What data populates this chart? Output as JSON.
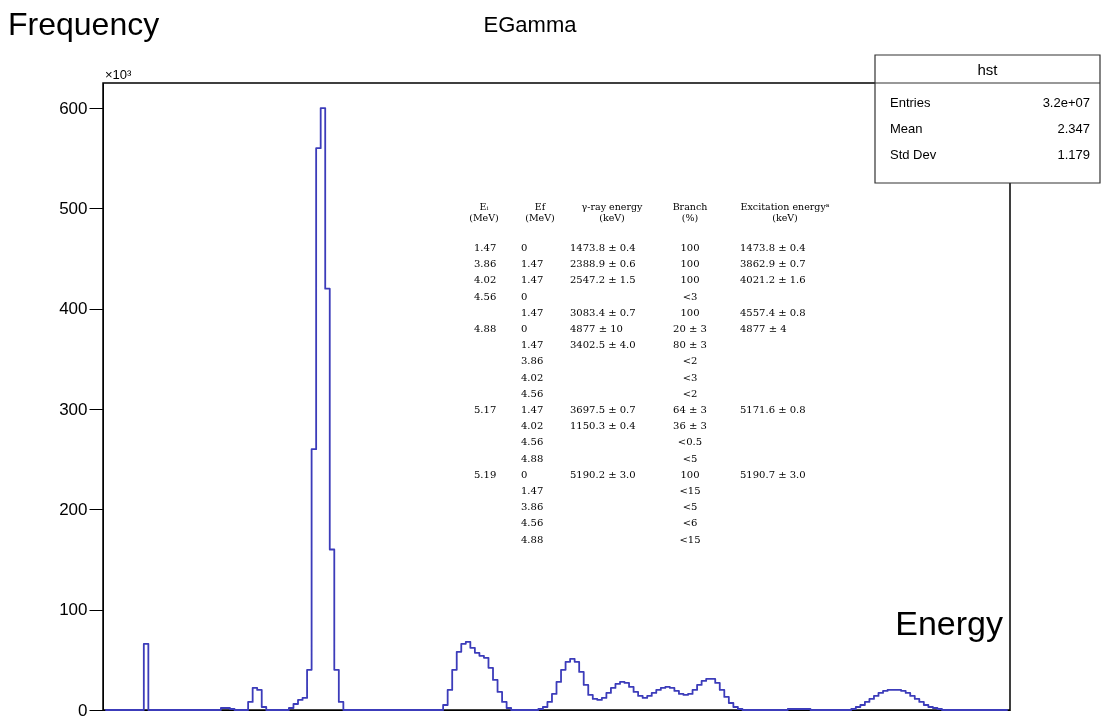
{
  "chart_data": [
    {
      "type": "step",
      "title": "EGamma",
      "xlabel": "Energy",
      "ylabel": "Frequency",
      "annotations": [
        "×10³"
      ],
      "tick_labels": "y",
      "ylim": [
        0,
        625
      ],
      "yticks": [
        0,
        100,
        200,
        300,
        400,
        500,
        600
      ],
      "grid": false,
      "categories": [
        null,
        null,
        null,
        null,
        null,
        null,
        null,
        null,
        null,
        null,
        null,
        null,
        null,
        null,
        null,
        null,
        null,
        null,
        null,
        null,
        null,
        null,
        null,
        null,
        null,
        null,
        null,
        null,
        null,
        null,
        null,
        null,
        null,
        null,
        null,
        null,
        null,
        null,
        null,
        null,
        null,
        null,
        null,
        null,
        null,
        null,
        null,
        null,
        null,
        null,
        null,
        null,
        null,
        null,
        null,
        null,
        null,
        null,
        null,
        null,
        null,
        null,
        null,
        null,
        null,
        null,
        null,
        null,
        null,
        null,
        null,
        null,
        null,
        null,
        null,
        null,
        null,
        null,
        null,
        null,
        null,
        null,
        null,
        null,
        null,
        null,
        null,
        null,
        null,
        null,
        null,
        null,
        null,
        null,
        null,
        null,
        null,
        null,
        null,
        null,
        null,
        null,
        null,
        null,
        null,
        null,
        null,
        null,
        null,
        null,
        null,
        null,
        null,
        null,
        null,
        null,
        null,
        null,
        null,
        null,
        null,
        null,
        null,
        null,
        null,
        null,
        null,
        null,
        null,
        null,
        null,
        null,
        null,
        null,
        null,
        null,
        null,
        null,
        null,
        null,
        null,
        null,
        null,
        null,
        null,
        null,
        null,
        null,
        null,
        null,
        null,
        null,
        null,
        null,
        null,
        null,
        null,
        null,
        null,
        null,
        null,
        null,
        null,
        null,
        null,
        null,
        null,
        null,
        null,
        null,
        null,
        null,
        null,
        null,
        null,
        null,
        null,
        null,
        null,
        null,
        null,
        null,
        null,
        null,
        null,
        null,
        null,
        null,
        null,
        null,
        null,
        null,
        null,
        null,
        null,
        null,
        null,
        null,
        null,
        null
      ],
      "series": [
        {
          "color": "#3c3cba",
          "values": [
            0,
            0,
            0,
            0,
            0,
            0,
            0,
            0,
            0,
            66,
            0,
            0,
            0,
            0,
            0,
            0,
            0,
            0,
            0,
            0,
            0,
            0,
            0,
            0,
            0,
            0,
            2,
            2,
            1,
            0,
            0,
            0,
            8,
            22,
            20,
            3,
            0,
            0,
            0,
            0,
            0,
            2,
            6,
            10,
            12,
            40,
            260,
            560,
            600,
            420,
            160,
            40,
            8,
            0,
            0,
            0,
            0,
            0,
            0,
            0,
            0,
            0,
            0,
            0,
            0,
            0,
            0,
            0,
            0,
            0,
            0,
            0,
            0,
            0,
            0,
            5,
            20,
            40,
            58,
            66,
            68,
            62,
            57,
            54,
            52,
            42,
            30,
            18,
            8,
            2,
            0,
            0,
            0,
            0,
            0,
            0,
            1,
            3,
            8,
            16,
            28,
            40,
            48,
            51,
            48,
            38,
            25,
            15,
            11,
            10,
            12,
            17,
            22,
            26,
            28,
            27,
            23,
            18,
            14,
            12,
            14,
            17,
            20,
            22,
            23,
            22,
            19,
            16,
            15,
            16,
            20,
            25,
            29,
            31,
            31,
            27,
            20,
            13,
            7,
            3,
            1,
            0,
            0,
            0,
            0,
            0,
            0,
            0,
            0,
            0,
            0,
            1,
            1,
            1,
            1,
            1,
            0,
            0,
            0,
            0,
            0,
            0,
            0,
            0,
            0,
            1,
            3,
            5,
            8,
            11,
            14,
            17,
            19,
            20,
            20,
            20,
            19,
            17,
            14,
            11,
            8,
            5,
            3,
            2,
            1,
            0,
            0,
            0,
            0,
            0,
            0,
            0,
            0,
            0,
            0,
            0,
            0,
            0,
            0,
            0
          ]
        }
      ]
    },
    {
      "type": "other",
      "title": "hst",
      "annotations": [
        "Entries",
        "3.2e+07",
        "Mean",
        "2.347",
        "Std Dev",
        "1.179"
      ]
    },
    {
      "type": "other",
      "categories": [
        "Eᵢ\n(MeV)",
        "Ef\n(MeV)",
        "γ-ray energy\n(keV)",
        "Branch\n(%)",
        "Excitation energyᵃ\n(keV)"
      ],
      "cell_labels": [
        [
          "1.47",
          "0",
          "1473.8 ± 0.4",
          "100",
          "1473.8 ± 0.4"
        ],
        [
          "3.86",
          "1.47",
          "2388.9 ± 0.6",
          "100",
          "3862.9 ± 0.7"
        ],
        [
          "4.02",
          "1.47",
          "2547.2 ± 1.5",
          "100",
          "4021.2 ± 1.6"
        ],
        [
          "4.56",
          "0",
          null,
          "<3",
          null
        ],
        [
          null,
          "1.47",
          "3083.4 ± 0.7",
          "100",
          "4557.4 ± 0.8"
        ],
        [
          "4.88",
          "0",
          "4877 ± 10",
          "20 ± 3",
          "4877 ± 4"
        ],
        [
          null,
          "1.47",
          "3402.5 ± 4.0",
          "80 ± 3",
          null
        ],
        [
          null,
          "3.86",
          null,
          "<2",
          null
        ],
        [
          null,
          "4.02",
          null,
          "<3",
          null
        ],
        [
          null,
          "4.56",
          null,
          "<2",
          null
        ],
        [
          "5.17",
          "1.47",
          "3697.5 ± 0.7",
          "64 ± 3",
          "5171.6 ± 0.8"
        ],
        [
          null,
          "4.02",
          "1150.3 ± 0.4",
          "36 ± 3",
          null
        ],
        [
          null,
          "4.56",
          null,
          "<0.5",
          null
        ],
        [
          null,
          "4.88",
          null,
          "<5",
          null
        ],
        [
          "5.19",
          "0",
          "5190.2 ± 3.0",
          "100",
          "5190.7 ± 3.0"
        ],
        [
          null,
          "1.47",
          null,
          "<15",
          null
        ],
        [
          null,
          "3.86",
          null,
          "<5",
          null
        ],
        [
          null,
          "4.56",
          null,
          "<6",
          null
        ],
        [
          null,
          "4.88",
          null,
          "<15",
          null
        ]
      ]
    }
  ]
}
